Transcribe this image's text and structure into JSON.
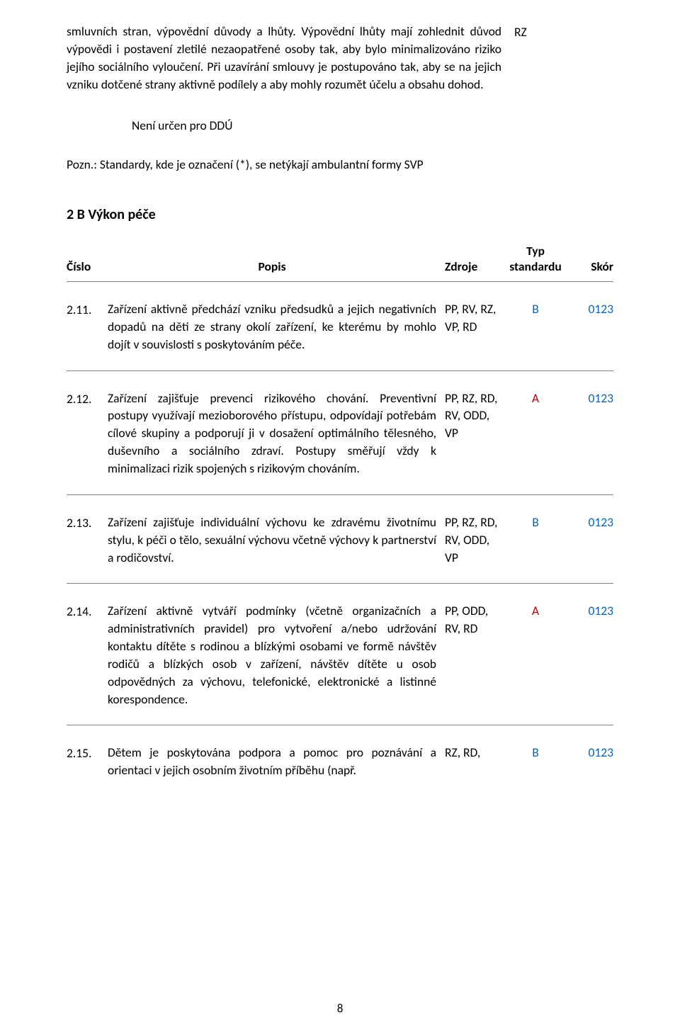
{
  "colors": {
    "text": "#000000",
    "rule": "#808080",
    "blue": "#0563c1",
    "red": "#c00000",
    "background": "#ffffff"
  },
  "top": {
    "desc": "smluvních stran, výpovědní důvody a lhůty. Výpovědní lhůty mají zohlednit důvod výpovědi i postavení zletilé nezaopatřené osoby tak, aby bylo minimalizováno riziko jejího sociálního vyloučení. Při uzavírání smlouvy je postupováno tak, aby se na jejich vzniku dotčené strany aktivně podílely a aby mohly rozumět účelu a obsahu dohod.",
    "src": "RZ"
  },
  "intermed": "Není určen pro DDÚ",
  "note": "Pozn.: Standardy, kde je označení (*), se netýkají ambulantní formy SVP",
  "section_title": "2 B Výkon péče",
  "headers": {
    "num": "Číslo",
    "desc": "Popis",
    "src": "Zdroje",
    "typ_l1": "Typ",
    "typ_l2": "standardu",
    "skor": "Skór"
  },
  "items": [
    {
      "num": "2.11.",
      "desc": "Zařízení aktivně předchází vzniku předsudků a jejich negativních dopadů na děti ze strany okolí zařízení, ke kterému by mohlo dojít v souvislosti s poskytováním péče.",
      "src": "PP, RV, RZ, VP, RD",
      "typ": "B",
      "typ_color": "blue",
      "skor": "0123",
      "skor_color": "blue"
    },
    {
      "num": "2.12.",
      "desc": "Zařízení zajišťuje prevenci rizikového chování. Preventivní postupy využívají mezioborového přístupu, odpovídají potřebám cílové skupiny a podporují ji v dosažení optimálního tělesného, duševního a sociálního zdraví. Postupy směřují vždy k minimalizaci rizik spojených s rizikovým chováním.",
      "src": "PP, RZ, RD, RV, ODD, VP",
      "typ": "A",
      "typ_color": "red",
      "skor": "0123",
      "skor_color": "blue"
    },
    {
      "num": "2.13.",
      "desc": "Zařízení zajišťuje individuální výchovu ke zdravému životnímu stylu, k péči o tělo, sexuální výchovu včetně výchovy k partnerství a rodičovství.",
      "src": "PP, RZ, RD, RV, ODD, VP",
      "typ": "B",
      "typ_color": "blue",
      "skor": "0123",
      "skor_color": "blue"
    },
    {
      "num": "2.14.",
      "desc": "Zařízení aktivně vytváří podmínky (včetně organizačních a administrativních pravidel) pro vytvoření a/nebo udržování kontaktu dítěte s rodinou a blízkými osobami ve formě návštěv rodičů a blízkých osob v zařízení, návštěv dítěte u osob odpovědných za výchovu, telefonické, elektronické a listinné korespondence.",
      "src": "PP, ODD, RV, RD",
      "typ": "A",
      "typ_color": "red",
      "skor": "0123",
      "skor_color": "blue"
    },
    {
      "num": "2.15.",
      "desc": "Dětem je poskytována podpora a pomoc pro poznávání a orientaci v jejich osobním životním příběhu (např.",
      "src": "RZ, RD,",
      "typ": "B",
      "typ_color": "blue",
      "skor": "0123",
      "skor_color": "blue"
    }
  ],
  "page_number": "8"
}
